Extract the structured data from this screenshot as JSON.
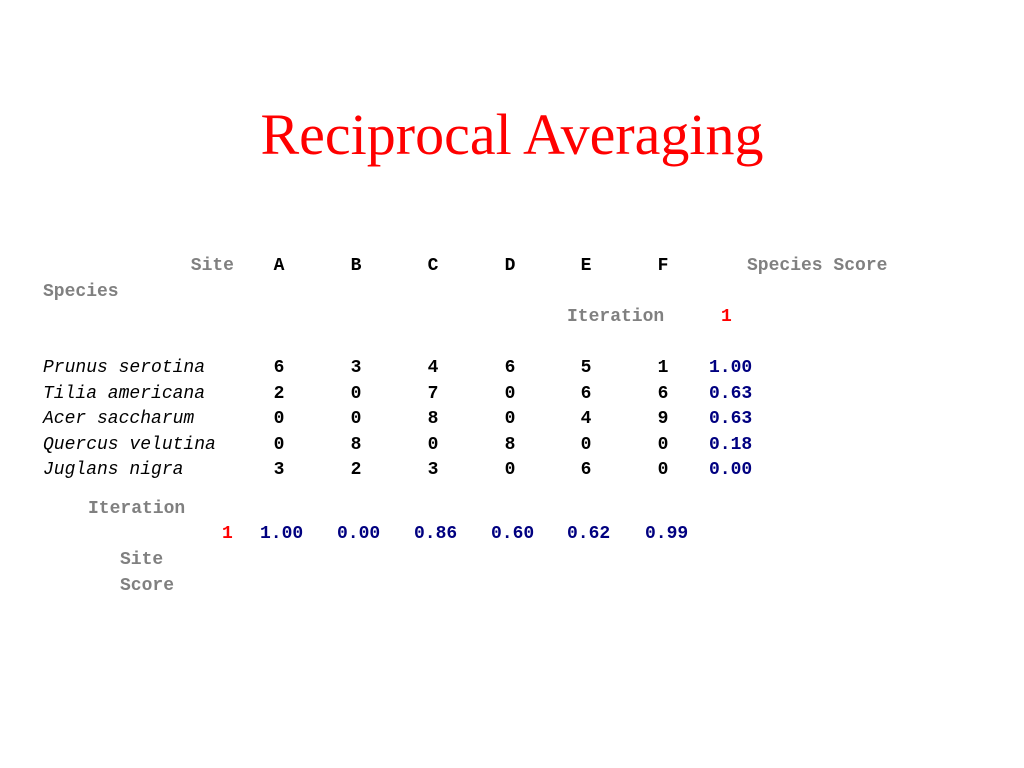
{
  "title": "Reciprocal Averaging",
  "header": {
    "site_label": "Site",
    "species_label": "Species",
    "species_score_label": "Species Score",
    "site_columns": [
      "A",
      "B",
      "C",
      "D",
      "E",
      "F"
    ],
    "iteration_label": "Iteration",
    "iteration_value": "1"
  },
  "rows": [
    {
      "name": "Prunus serotina",
      "values": [
        "6",
        "3",
        "4",
        "6",
        "5",
        "1"
      ],
      "score": "1.00"
    },
    {
      "name": "Tilia americana",
      "values": [
        "2",
        "0",
        "7",
        "0",
        "6",
        "6"
      ],
      "score": "0.63"
    },
    {
      "name": "Acer saccharum",
      "values": [
        "0",
        "0",
        "8",
        "0",
        "4",
        "9"
      ],
      "score": "0.63"
    },
    {
      "name": "Quercus velutina",
      "values": [
        "0",
        "8",
        "0",
        "8",
        "0",
        "0"
      ],
      "score": "0.18"
    },
    {
      "name": "Juglans nigra",
      "values": [
        "3",
        "2",
        "3",
        "0",
        "6",
        "0"
      ],
      "score": "0.00"
    }
  ],
  "site_score_block": {
    "iteration_label": "Iteration",
    "iteration_value": "1",
    "scores": [
      "1.00",
      "0.00",
      "0.86",
      "0.60",
      "0.62",
      "0.99"
    ],
    "label_line1": "Site",
    "label_line2": "Score"
  },
  "colors": {
    "title": "#ff0000",
    "labels": "#808080",
    "scores": "#000080",
    "iteration_number": "#ff0000"
  }
}
